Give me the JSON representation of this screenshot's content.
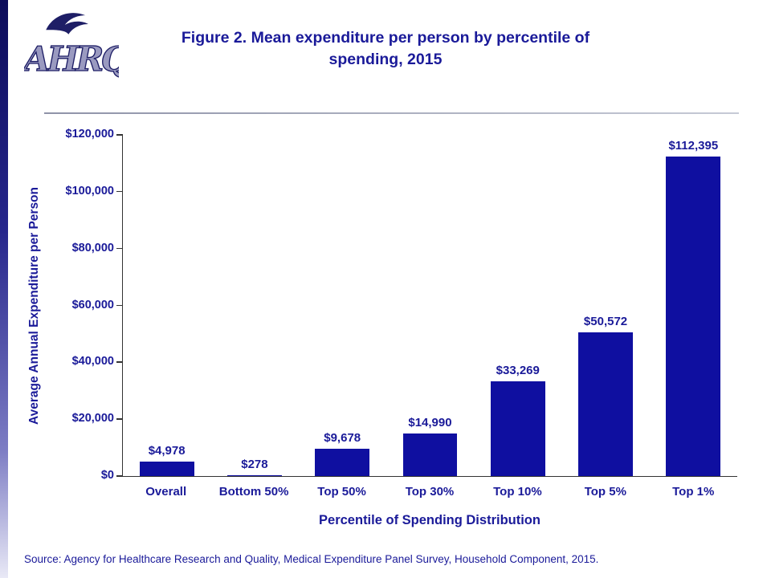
{
  "header": {
    "logo_text": "AHRQ",
    "title_line1": "Figure 2. Mean expenditure per person by percentile of",
    "title_line2": "spending, 2015"
  },
  "chart_data": {
    "type": "bar",
    "title": "Figure 2. Mean expenditure per person by percentile of spending, 2015",
    "categories": [
      "Overall",
      "Bottom 50%",
      "Top 50%",
      "Top 30%",
      "Top 10%",
      "Top 5%",
      "Top 1%"
    ],
    "values": [
      4978,
      278,
      9678,
      14990,
      33269,
      50572,
      112395
    ],
    "value_labels": [
      "$4,978",
      "$278",
      "$9,678",
      "$14,990",
      "$33,269",
      "$50,572",
      "$112,395"
    ],
    "xlabel": "Percentile of Spending Distribution",
    "ylabel": "Average Annual Expenditure per Person",
    "ylim": [
      0,
      120000
    ],
    "y_ticks": [
      {
        "value": 0,
        "label": "$0"
      },
      {
        "value": 20000,
        "label": "$20,000"
      },
      {
        "value": 40000,
        "label": "$40,000"
      },
      {
        "value": 60000,
        "label": "$60,000"
      },
      {
        "value": 80000,
        "label": "$80,000"
      },
      {
        "value": 100000,
        "label": "$100,000"
      },
      {
        "value": 120000,
        "label": "$120,000"
      }
    ],
    "bar_color": "#0f0fa0",
    "grid": false,
    "legend": false
  },
  "footer": {
    "source": "Source: Agency for Healthcare Research and Quality, Medical Expenditure Panel Survey, Household Component, 2015."
  },
  "colors": {
    "accent_text": "#1a1a99",
    "bar": "#0f0fa0",
    "axis": "#333333"
  }
}
